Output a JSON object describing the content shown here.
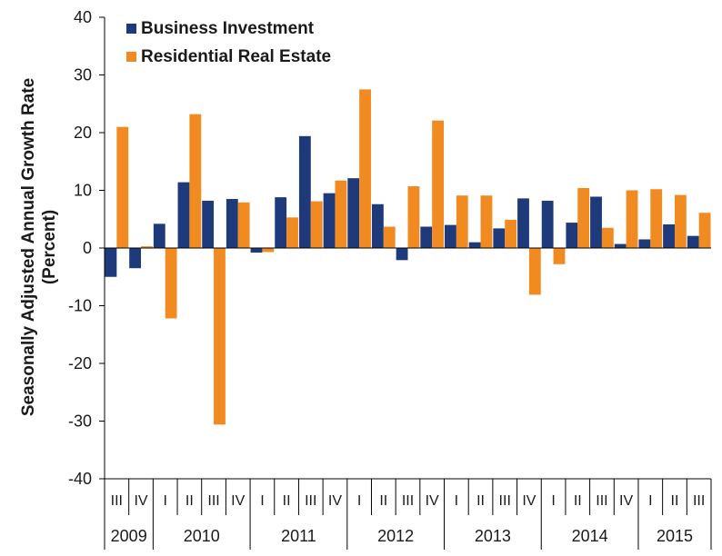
{
  "chart_data": {
    "type": "bar",
    "ylabel_line1": "Seasonally Adjusted Annual Growth Rate",
    "ylabel_line2": "(Percent)",
    "ylim": [
      -40,
      40
    ],
    "yticks": [
      "-40",
      "-30",
      "-20",
      "-10",
      "0",
      "10",
      "20",
      "30",
      "40"
    ],
    "grid": false,
    "legend_position": "top-left",
    "categories": [
      "III",
      "IV",
      "I",
      "II",
      "III",
      "IV",
      "I",
      "II",
      "III",
      "IV",
      "I",
      "II",
      "III",
      "IV",
      "I",
      "II",
      "III",
      "IV",
      "I",
      "II",
      "III",
      "IV",
      "I",
      "II",
      "III"
    ],
    "years": [
      {
        "label": "2009",
        "quarters": 2
      },
      {
        "label": "2010",
        "quarters": 4
      },
      {
        "label": "2011",
        "quarters": 4
      },
      {
        "label": "2012",
        "quarters": 4
      },
      {
        "label": "2013",
        "quarters": 4
      },
      {
        "label": "2014",
        "quarters": 4
      },
      {
        "label": "2015",
        "quarters": 3
      }
    ],
    "series": [
      {
        "name": "Business Investment",
        "color": "#1f3a7a",
        "values": [
          -5.0,
          -3.5,
          4.2,
          11.4,
          8.2,
          8.5,
          -0.8,
          8.8,
          19.4,
          9.5,
          12.1,
          7.6,
          -2.1,
          3.7,
          4.0,
          1.0,
          3.4,
          8.6,
          8.2,
          4.4,
          8.9,
          0.7,
          1.5,
          4.1,
          2.1
        ]
      },
      {
        "name": "Residential Real Estate",
        "color": "#f28a22",
        "values": [
          21.0,
          0.3,
          -12.2,
          23.2,
          -30.6,
          7.9,
          -0.7,
          5.3,
          8.1,
          11.7,
          27.5,
          3.7,
          10.7,
          22.1,
          9.1,
          9.1,
          4.9,
          -8.1,
          -2.8,
          10.4,
          3.5,
          10.0,
          10.2,
          9.2,
          6.1
        ]
      }
    ]
  }
}
